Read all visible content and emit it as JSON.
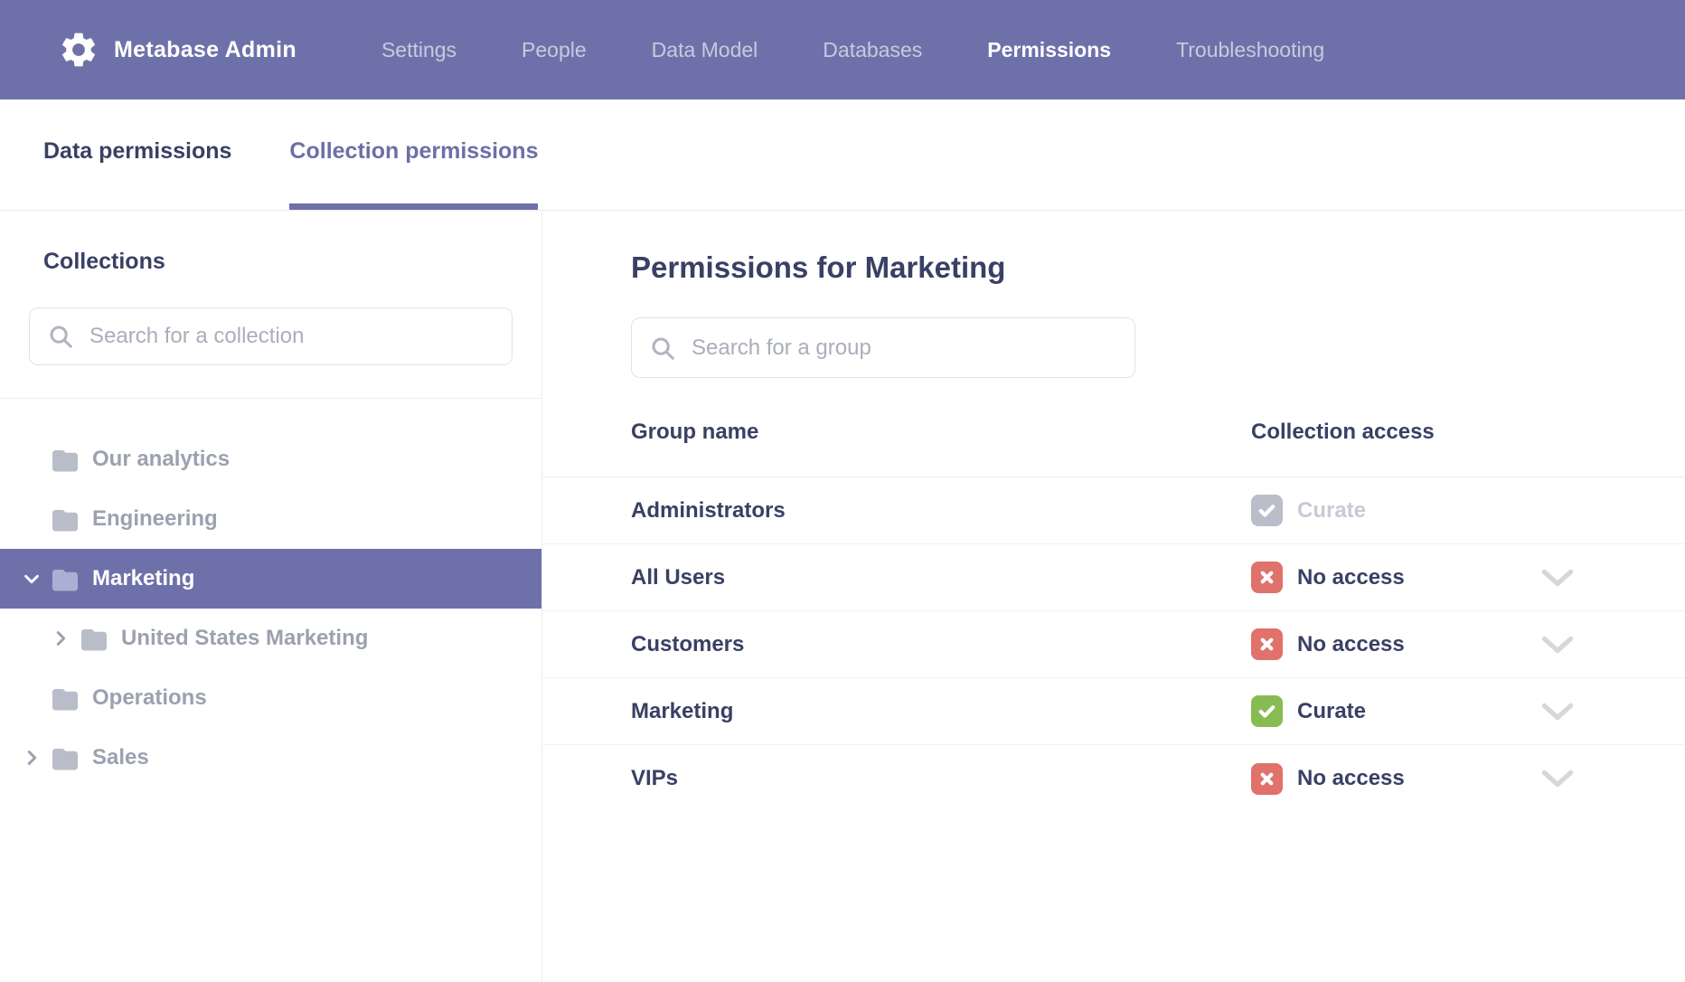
{
  "navbar": {
    "brand": "Metabase Admin",
    "items": [
      {
        "label": "Settings",
        "active": false
      },
      {
        "label": "People",
        "active": false
      },
      {
        "label": "Data Model",
        "active": false
      },
      {
        "label": "Databases",
        "active": false
      },
      {
        "label": "Permissions",
        "active": true
      },
      {
        "label": "Troubleshooting",
        "active": false
      }
    ]
  },
  "tabs": [
    {
      "label": "Data permissions",
      "active": false
    },
    {
      "label": "Collection permissions",
      "active": true
    }
  ],
  "sidebar": {
    "heading": "Collections",
    "search_placeholder": "Search for a collection",
    "tree": [
      {
        "label": "Our analytics",
        "expander": "none",
        "indent": 0,
        "selected": false
      },
      {
        "label": "Engineering",
        "expander": "none",
        "indent": 0,
        "selected": false
      },
      {
        "label": "Marketing",
        "expander": "down",
        "indent": 0,
        "selected": true
      },
      {
        "label": "United States Marketing",
        "expander": "right",
        "indent": 1,
        "selected": false
      },
      {
        "label": "Operations",
        "expander": "none",
        "indent": 0,
        "selected": false
      },
      {
        "label": "Sales",
        "expander": "right",
        "indent": 0,
        "selected": false
      }
    ]
  },
  "main": {
    "title": "Permissions for Marketing",
    "search_placeholder": "Search for a group",
    "table": {
      "columns": [
        "Group name",
        "Collection access"
      ],
      "rows": [
        {
          "group": "Administrators",
          "access": "Curate",
          "access_type": "curate-disabled",
          "has_dropdown": false
        },
        {
          "group": "All Users",
          "access": "No access",
          "access_type": "no-access",
          "has_dropdown": true
        },
        {
          "group": "Customers",
          "access": "No access",
          "access_type": "no-access",
          "has_dropdown": true
        },
        {
          "group": "Marketing",
          "access": "Curate",
          "access_type": "curate",
          "has_dropdown": true
        },
        {
          "group": "VIPs",
          "access": "No access",
          "access_type": "no-access",
          "has_dropdown": true
        }
      ]
    }
  },
  "colors": {
    "navbar_purple": "#6E71A9",
    "selected_purple": "#6E71A9",
    "tab_active": "#6C6FA7",
    "text_dark": "#394064",
    "text_gray": "#9CA1AF",
    "text_disabled": "#C6CAD3",
    "badge_green": "#88BC52",
    "badge_red": "#E0716B",
    "badge_gray": "#BABEC8"
  }
}
